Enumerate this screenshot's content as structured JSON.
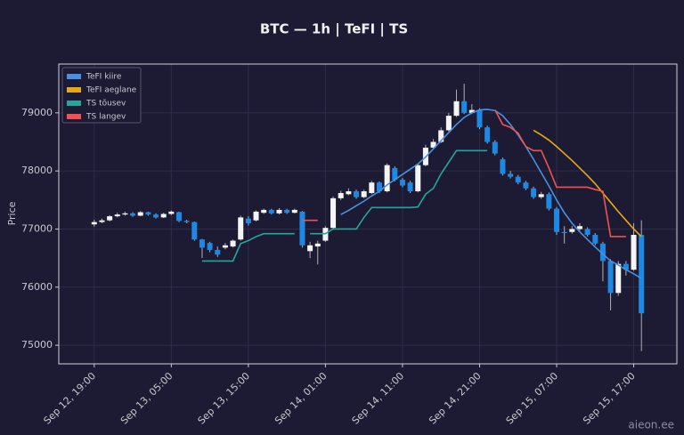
{
  "chart_data": {
    "type": "candlestick",
    "title": "BTC — 1h  |  TeFI  |  TS",
    "ylabel": "Price",
    "watermark": "aieon.ee",
    "categories": [
      "Sep 12, 19:00",
      null,
      null,
      null,
      null,
      null,
      null,
      null,
      null,
      null,
      "Sep 13, 05:00",
      null,
      null,
      null,
      null,
      null,
      null,
      null,
      null,
      null,
      "Sep 13, 15:00",
      null,
      null,
      null,
      null,
      null,
      null,
      null,
      null,
      null,
      "Sep 14, 01:00",
      null,
      null,
      null,
      null,
      null,
      null,
      null,
      null,
      null,
      "Sep 14, 11:00",
      null,
      null,
      null,
      null,
      null,
      null,
      null,
      null,
      null,
      "Sep 14, 21:00",
      null,
      null,
      null,
      null,
      null,
      null,
      null,
      null,
      null,
      "Sep 15, 07:00",
      null,
      null,
      null,
      null,
      null,
      null,
      null,
      null,
      null,
      "Sep 15, 17:00",
      null
    ],
    "open": [
      77080,
      77120,
      77150,
      77220,
      77250,
      77270,
      77230,
      77290,
      77250,
      77200,
      77260,
      77290,
      77140,
      77120,
      76820,
      76760,
      76640,
      76680,
      76700,
      76820,
      77180,
      77150,
      77280,
      77330,
      77270,
      77330,
      77280,
      77300,
      76620,
      76700,
      76800,
      77020,
      77530,
      77600,
      77650,
      77550,
      77620,
      77800,
      77650,
      78050,
      77850,
      77800,
      77650,
      78100,
      78400,
      78500,
      78700,
      78950,
      79200,
      79000,
      79050,
      78750,
      78500,
      78200,
      77950,
      77900,
      77800,
      77700,
      77550,
      77600,
      77350,
      76950,
      76950,
      77000,
      77000,
      76900,
      76750,
      76450,
      75900,
      76400,
      76300,
      76900
    ],
    "high": [
      77160,
      77180,
      77240,
      77280,
      77300,
      77290,
      77310,
      77300,
      77270,
      77280,
      77320,
      77300,
      77160,
      77130,
      76830,
      76780,
      76700,
      76760,
      76820,
      77230,
      77220,
      77320,
      77350,
      77350,
      77360,
      77350,
      77350,
      77310,
      76780,
      76800,
      77050,
      77560,
      77660,
      77700,
      77680,
      77680,
      77830,
      77820,
      78130,
      78080,
      77880,
      77830,
      78130,
      78450,
      78550,
      78750,
      79000,
      79400,
      79500,
      79150,
      79080,
      78780,
      78530,
      78230,
      78000,
      77930,
      77830,
      77730,
      77640,
      77630,
      77380,
      77050,
      77050,
      77100,
      77030,
      76930,
      76780,
      76480,
      76450,
      76450,
      77100,
      77150
    ],
    "low": [
      77040,
      77100,
      77130,
      77200,
      77230,
      77210,
      77220,
      77230,
      77180,
      77190,
      77240,
      77120,
      77100,
      76800,
      76500,
      76600,
      76520,
      76650,
      76680,
      76800,
      77060,
      77130,
      77260,
      77250,
      77250,
      77260,
      77270,
      76680,
      76500,
      76390,
      76780,
      77000,
      77500,
      77580,
      77520,
      77530,
      77600,
      77620,
      77630,
      77820,
      77720,
      77620,
      77630,
      78080,
      78380,
      78480,
      78680,
      78930,
      78980,
      78980,
      78720,
      78470,
      78270,
      77920,
      77870,
      77770,
      77670,
      77520,
      77520,
      77320,
      76900,
      76750,
      76920,
      76970,
      76870,
      76720,
      76100,
      75600,
      75850,
      76200,
      76280,
      74900
    ],
    "close": [
      77120,
      77150,
      77220,
      77250,
      77270,
      77230,
      77290,
      77250,
      77200,
      77260,
      77300,
      77140,
      77120,
      76820,
      76680,
      76640,
      76560,
      76720,
      76800,
      77200,
      77100,
      77300,
      77330,
      77270,
      77330,
      77280,
      77330,
      76720,
      76720,
      76750,
      77020,
      77530,
      77620,
      77650,
      77550,
      77650,
      77800,
      77650,
      78100,
      77850,
      77750,
      77650,
      78100,
      78400,
      78500,
      78700,
      78950,
      79200,
      79000,
      79050,
      78750,
      78500,
      78300,
      77950,
      77900,
      77800,
      77700,
      77550,
      77600,
      77350,
      76950,
      76930,
      77000,
      77050,
      76900,
      76750,
      76450,
      75900,
      76400,
      76300,
      76900,
      75550
    ],
    "up_color": "#f5f5f5",
    "down_color": "#1e88e5",
    "series": [
      {
        "name": "TeFI kiire",
        "color": "#4a90e2",
        "values": [
          null,
          null,
          null,
          null,
          null,
          null,
          null,
          null,
          null,
          null,
          null,
          null,
          null,
          null,
          null,
          null,
          null,
          null,
          null,
          null,
          null,
          null,
          null,
          null,
          null,
          null,
          null,
          null,
          null,
          null,
          null,
          null,
          77250,
          77320,
          77400,
          77480,
          77570,
          77650,
          77760,
          77850,
          77940,
          78030,
          78120,
          78240,
          78380,
          78520,
          78660,
          78800,
          78920,
          79000,
          79050,
          79060,
          79040,
          78950,
          78800,
          78620,
          78420,
          78200,
          77970,
          77740,
          77500,
          77280,
          77100,
          76950,
          76820,
          76690,
          76570,
          76450,
          76380,
          76300,
          76230,
          76150
        ]
      },
      {
        "name": "TeFI aeglane",
        "color": "#e6a817",
        "values": [
          null,
          null,
          null,
          null,
          null,
          null,
          null,
          null,
          null,
          null,
          null,
          null,
          null,
          null,
          null,
          null,
          null,
          null,
          null,
          null,
          null,
          null,
          null,
          null,
          null,
          null,
          null,
          null,
          null,
          null,
          null,
          null,
          null,
          null,
          null,
          null,
          null,
          null,
          null,
          null,
          null,
          null,
          null,
          null,
          null,
          null,
          null,
          null,
          null,
          null,
          null,
          null,
          null,
          null,
          null,
          null,
          null,
          78700,
          78620,
          78530,
          78420,
          78300,
          78180,
          78050,
          77920,
          77780,
          77620,
          77460,
          77300,
          77150,
          77000,
          76870
        ]
      },
      {
        "name": "TS tõusev",
        "color": "#26a69a",
        "values": [
          null,
          null,
          null,
          null,
          null,
          null,
          null,
          null,
          null,
          null,
          null,
          null,
          null,
          null,
          76450,
          76450,
          76450,
          76450,
          76450,
          76750,
          76800,
          76870,
          76920,
          76920,
          76920,
          76920,
          76920,
          null,
          76920,
          76920,
          76920,
          77000,
          77000,
          77000,
          77000,
          77200,
          77370,
          77370,
          77370,
          77370,
          77370,
          77370,
          77380,
          77600,
          77700,
          77950,
          78150,
          78350,
          78350,
          78350,
          78350,
          78350,
          null,
          null,
          null,
          null,
          null,
          null,
          null,
          null,
          null,
          null,
          null,
          null,
          null,
          null,
          null,
          null,
          null,
          null,
          null,
          null
        ]
      },
      {
        "name": "TS langev",
        "color": "#ef5350",
        "values": [
          null,
          null,
          null,
          null,
          null,
          null,
          null,
          null,
          null,
          null,
          null,
          null,
          null,
          null,
          null,
          null,
          null,
          null,
          null,
          null,
          null,
          null,
          null,
          null,
          null,
          null,
          null,
          77150,
          77150,
          77150,
          null,
          null,
          null,
          null,
          null,
          null,
          null,
          null,
          null,
          null,
          null,
          null,
          null,
          null,
          null,
          null,
          null,
          null,
          null,
          null,
          null,
          null,
          79050,
          78800,
          78750,
          78650,
          78420,
          78350,
          78350,
          78050,
          77720,
          77720,
          77720,
          77720,
          77720,
          77680,
          77650,
          76870,
          76870,
          76870,
          null,
          null
        ]
      }
    ],
    "xlim": [
      -4.6,
      75.6
    ],
    "ylim": [
      74680,
      79840
    ],
    "yticks": [
      75000,
      76000,
      77000,
      78000,
      79000
    ],
    "grid": true,
    "legend": "upper left"
  }
}
